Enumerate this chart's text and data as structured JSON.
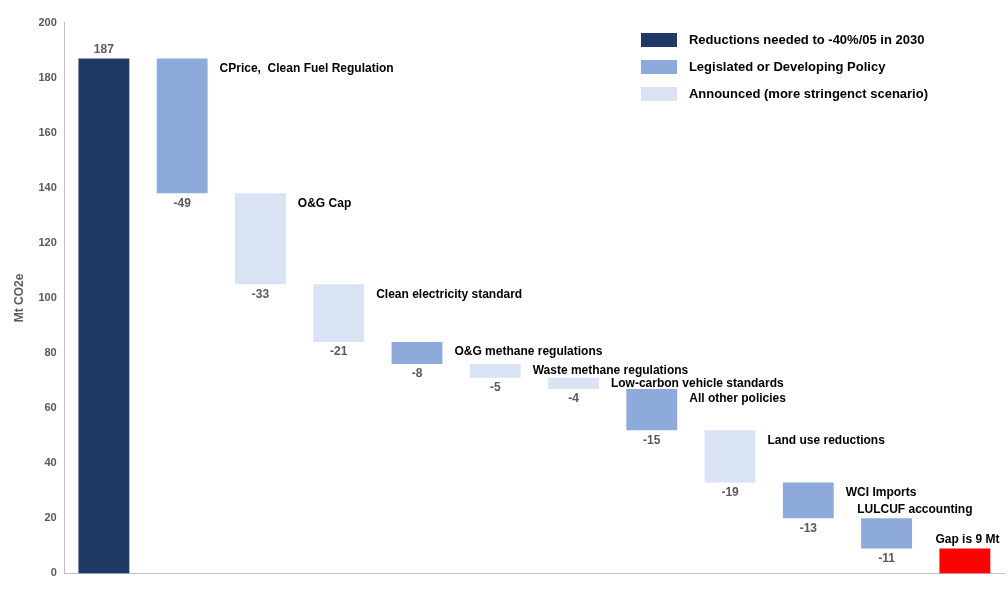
{
  "chart_data": {
    "type": "bar",
    "ylabel": "Mt CO2e",
    "categories": [
      null,
      null,
      null,
      null,
      null,
      null,
      null,
      null,
      null,
      null,
      null,
      null
    ],
    "annotations": [
      "CPrice,  Clean Fuel Regulation",
      "O&G Cap",
      "Clean electricity standard",
      "O&G methane regulations",
      "Waste methane regulations",
      "Low-carbon vehicle standards",
      "All other policies",
      "Land use reductions",
      "WCI Imports",
      "LULCUF accounting",
      "Gap is 9 Mt"
    ],
    "series": [
      {
        "name": "Reductions needed to -40%/05 in 2030",
        "color": "#203864",
        "values": [
          187,
          null,
          null,
          null,
          null,
          null,
          null,
          null,
          null,
          null,
          null,
          null
        ],
        "base": [
          0,
          null,
          null,
          null,
          null,
          null,
          null,
          null,
          null,
          null,
          null,
          null
        ],
        "value_labels": [
          "187",
          null,
          null,
          null,
          null,
          null,
          null,
          null,
          null,
          null,
          null,
          null
        ]
      },
      {
        "name": "Legislated or Developing Policy",
        "color": "#8eaadb",
        "values": [
          null,
          -49,
          null,
          null,
          -8,
          null,
          null,
          -15,
          null,
          -13,
          -11,
          null
        ],
        "base": [
          null,
          187,
          null,
          null,
          84,
          null,
          null,
          67,
          null,
          33,
          20,
          null
        ],
        "value_labels": [
          null,
          "-49",
          null,
          null,
          "-8",
          null,
          null,
          "-15",
          null,
          "-13",
          "-11",
          null
        ]
      },
      {
        "name": "Announced (more stringenct scenario)",
        "color": "#dae3f3",
        "values": [
          null,
          null,
          -33,
          -21,
          null,
          -5,
          -4,
          null,
          -19,
          null,
          null,
          null
        ],
        "base": [
          null,
          null,
          138,
          105,
          null,
          76,
          71,
          null,
          52,
          null,
          null,
          null
        ],
        "value_labels": [
          null,
          null,
          "-33",
          "-21",
          null,
          "-5",
          "-4",
          null,
          "-19",
          null,
          null,
          null
        ]
      },
      {
        "color": "#ff0000",
        "values": [
          null,
          null,
          null,
          null,
          null,
          null,
          null,
          null,
          null,
          null,
          null,
          9
        ],
        "base": [
          null,
          null,
          null,
          null,
          null,
          null,
          null,
          null,
          null,
          null,
          null,
          0
        ],
        "value_labels": [
          null,
          null,
          null,
          null,
          null,
          null,
          null,
          null,
          null,
          null,
          null,
          null
        ]
      }
    ],
    "ylim": [
      0,
      200
    ],
    "yticks": [
      0,
      20,
      40,
      60,
      80,
      100,
      120,
      140,
      160,
      180,
      200
    ],
    "grid": false,
    "legend": "top right"
  }
}
